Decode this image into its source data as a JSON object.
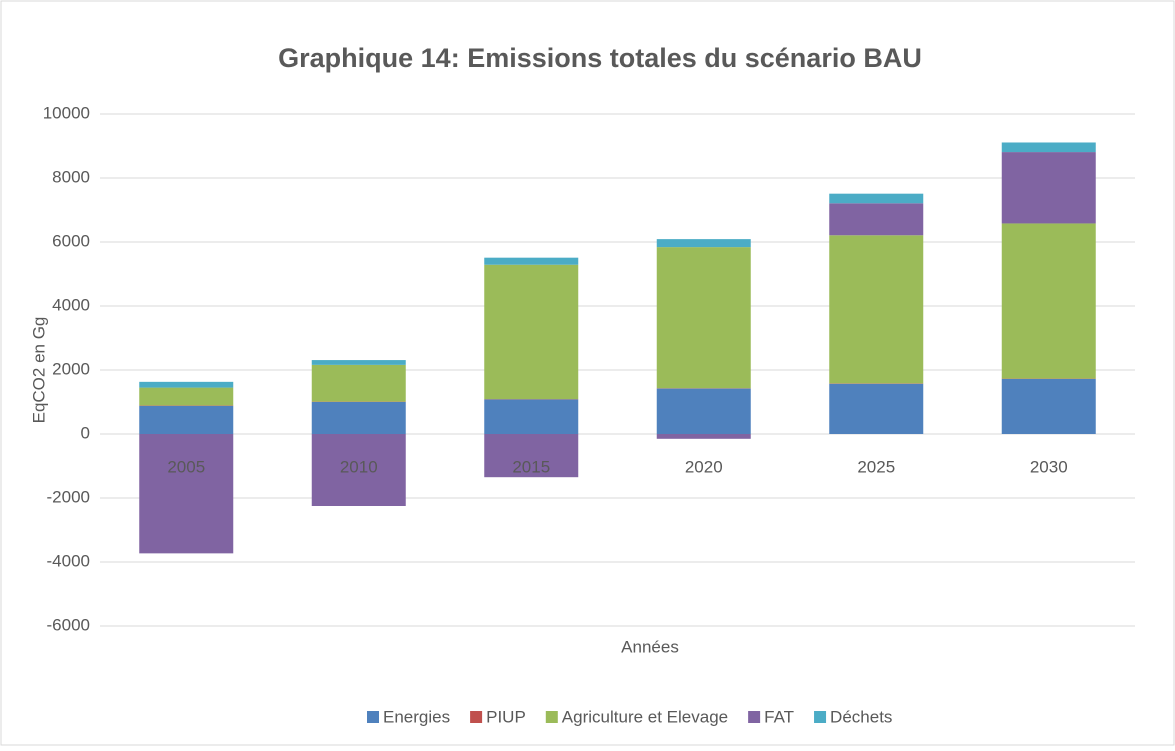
{
  "chart_data": {
    "type": "bar",
    "stacked": true,
    "title": "Graphique 14: Emissions totales du scénario BAU",
    "xlabel": "Années",
    "ylabel": "EqCO2 en Gg",
    "categories": [
      "2005",
      "2010",
      "2015",
      "2020",
      "2025",
      "2030"
    ],
    "series": [
      {
        "name": "Energies",
        "color": "#4f81bd",
        "values": [
          880,
          1000,
          1080,
          1420,
          1570,
          1720
        ]
      },
      {
        "name": "PIUP",
        "color": "#c0504d",
        "values": [
          10,
          10,
          10,
          10,
          10,
          10
        ]
      },
      {
        "name": "Agriculture et Elevage",
        "color": "#9bbb59",
        "values": [
          560,
          1150,
          4200,
          4410,
          4630,
          4850
        ]
      },
      {
        "name": "FAT",
        "color": "#8064a2",
        "values": [
          -3730,
          -2250,
          -1350,
          -150,
          1000,
          2230
        ]
      },
      {
        "name": "Déchets",
        "color": "#4bacc6",
        "values": [
          180,
          150,
          220,
          250,
          300,
          300
        ]
      }
    ],
    "ylim": [
      -6000,
      10000
    ],
    "yticks": [
      -6000,
      -4000,
      -2000,
      0,
      2000,
      4000,
      6000,
      8000,
      10000
    ],
    "grid": true,
    "legend": "bottom"
  }
}
